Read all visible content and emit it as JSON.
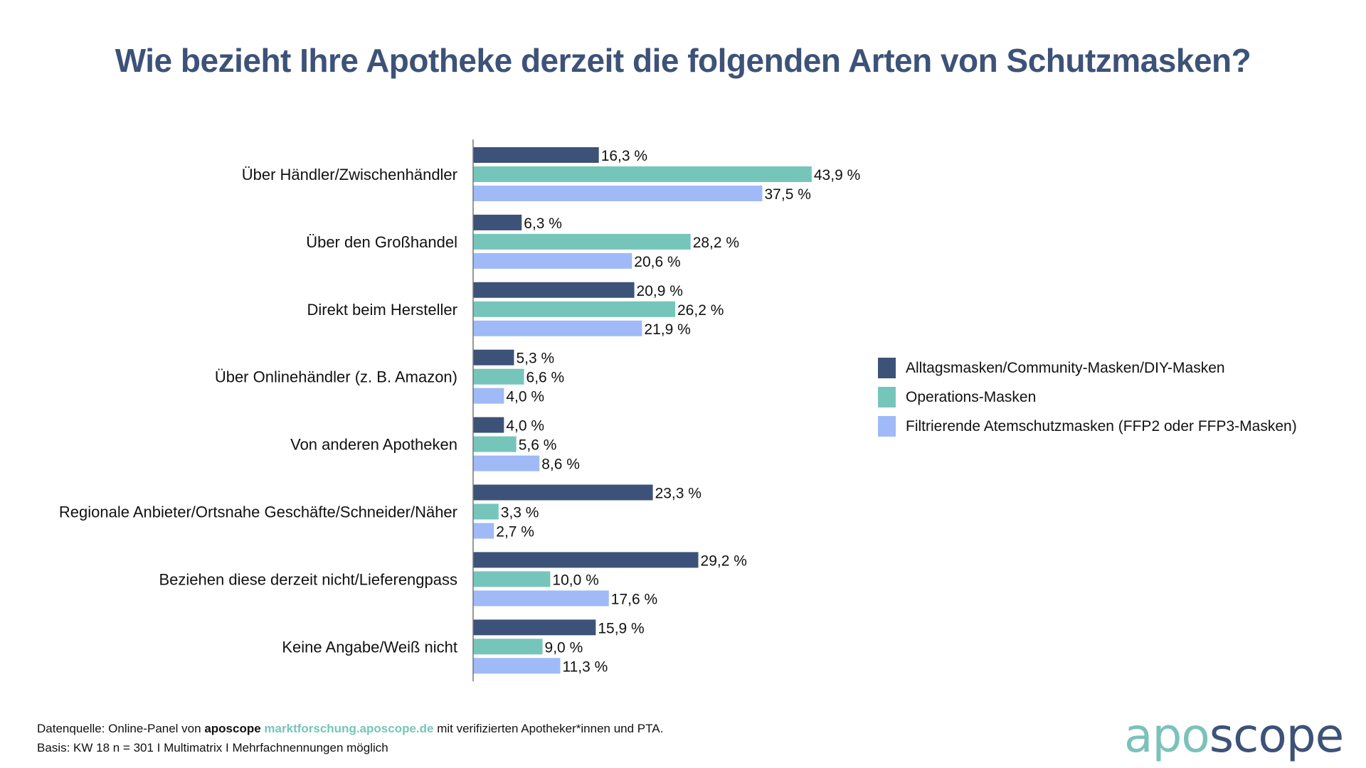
{
  "title": "Wie bezieht Ihre Apotheke derzeit die folgenden Arten von Schutzmasken?",
  "chart_data": {
    "type": "bar",
    "orientation": "horizontal",
    "title": "Wie bezieht Ihre Apotheke derzeit die folgenden Arten von Schutzmasken?",
    "xlabel": "",
    "ylabel": "",
    "xlim": [
      0,
      100
    ],
    "grid": false,
    "legend_position": "right",
    "value_suffix": " %",
    "categories": [
      "Über Händler/Zwischenhändler",
      "Über den Großhandel",
      "Direkt beim Hersteller",
      "Über Onlinehändler (z. B. Amazon)",
      "Von anderen Apotheken",
      "Regionale Anbieter/Ortsnahe Geschäfte/Schneider/Näher",
      "Beziehen diese derzeit nicht/Lieferengpass",
      "Keine Angabe/Weiß nicht"
    ],
    "series": [
      {
        "name": "Alltagsmasken/Community-Masken/DIY-Masken",
        "color": "#3d5278",
        "values": [
          16.3,
          6.3,
          20.9,
          5.3,
          4.0,
          23.3,
          29.2,
          15.9
        ]
      },
      {
        "name": "Operations-Masken",
        "color": "#76c5ba",
        "values": [
          43.9,
          28.2,
          26.2,
          6.6,
          5.6,
          3.3,
          10.0,
          9.0
        ]
      },
      {
        "name": "Filtrierende Atemschutzmasken (FFP2 oder FFP3-Masken)",
        "color": "#9fbaf7",
        "values": [
          37.5,
          20.6,
          21.9,
          4.0,
          8.6,
          2.7,
          17.6,
          11.3
        ]
      }
    ]
  },
  "footer": {
    "line1_prefix": "Datenquelle: Online-Panel von ",
    "line1_brand": "aposcope",
    "line1_link": "marktforschung.aposcope.de",
    "line1_suffix": " mit verifizierten Apotheker*innen und PTA.",
    "line2": "Basis: KW 18 n = 301 I Multimatrix I Mehrfachnennungen möglich"
  },
  "logo": {
    "part1": "apo",
    "part2": "scope"
  }
}
